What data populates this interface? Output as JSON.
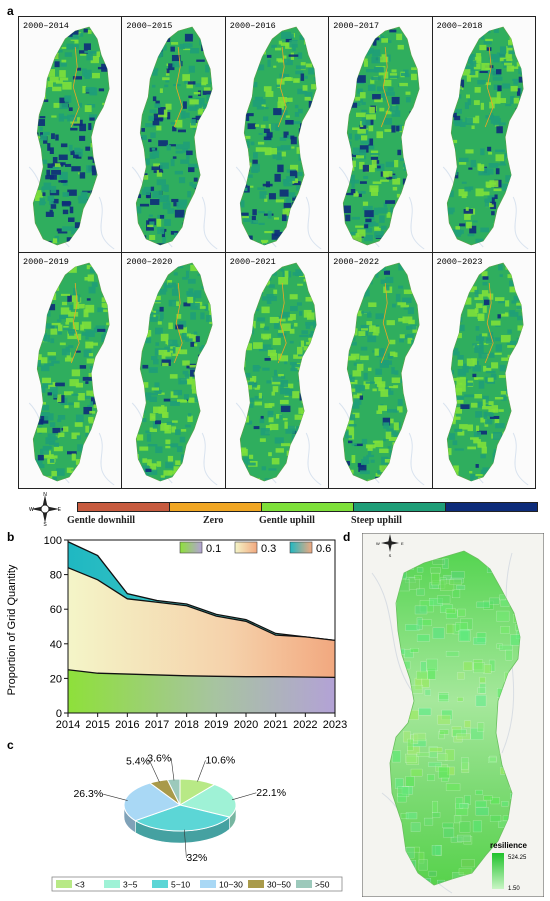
{
  "panel_labels": {
    "a": "a",
    "b": "b",
    "c": "c",
    "d": "d"
  },
  "panel_a": {
    "maps": [
      {
        "label": "2000–2014",
        "dark": 0.55
      },
      {
        "label": "2000–2015",
        "dark": 0.6
      },
      {
        "label": "2000–2016",
        "dark": 0.3
      },
      {
        "label": "2000–2017",
        "dark": 0.28
      },
      {
        "label": "2000–2018",
        "dark": 0.22
      },
      {
        "label": "2000–2019",
        "dark": 0.15
      },
      {
        "label": "2000–2020",
        "dark": 0.12
      },
      {
        "label": "2000–2021",
        "dark": 0.1
      },
      {
        "label": "2000–2022",
        "dark": 0.1
      },
      {
        "label": "2000–2023",
        "dark": 0.08
      }
    ],
    "legend": {
      "classes": [
        {
          "label": "Gentle downhill",
          "color": "#c75b3f"
        },
        {
          "label": "Zero",
          "color": "#f0a623"
        },
        {
          "label": "Gentle uphill",
          "color": "#7ee03a"
        },
        {
          "label": "Steep uphill",
          "color": "#1f9e78"
        },
        {
          "label": "",
          "color": "#0e2c7a"
        }
      ]
    }
  },
  "compass": {
    "n": "N",
    "s": "S",
    "e": "E",
    "w": "W"
  },
  "chart_data": [
    {
      "type": "area",
      "x": [
        2014,
        2015,
        2016,
        2017,
        2018,
        2019,
        2020,
        2021,
        2022,
        2023
      ],
      "ylabel": "Proportion of Grid Quantity",
      "ylim": [
        0,
        100
      ],
      "yticks": [
        0,
        20,
        40,
        60,
        80,
        100
      ],
      "legend_position": "top-right",
      "series": [
        {
          "name": "0.1",
          "values": [
            25,
            23,
            22.5,
            22,
            21.5,
            21.2,
            21,
            21,
            20.8,
            20.6
          ]
        },
        {
          "name": "0.3",
          "values": [
            84,
            77,
            66,
            64,
            62,
            56,
            53,
            45,
            44,
            42
          ]
        },
        {
          "name": "0.6",
          "values": [
            99,
            91,
            69,
            65,
            63,
            57,
            54,
            46,
            44,
            42
          ]
        }
      ]
    },
    {
      "type": "pie",
      "labels": [
        "<3",
        "3~5",
        "5~10",
        "10~30",
        "30~50",
        ">50"
      ],
      "values": [
        10.6,
        22.1,
        32,
        26.3,
        5.4,
        3.6
      ],
      "data_labels": [
        "10.6%",
        "22.1%",
        "32%",
        "26.3%",
        "5.4%",
        "3.6%"
      ],
      "colors": [
        "#b8e986",
        "#9ff2d6",
        "#5cd6d6",
        "#a9d8f5",
        "#a99a4a",
        "#9cc9bb"
      ],
      "legend_position": "bottom"
    }
  ],
  "panel_d": {
    "legend_title": "resilience",
    "max": "524.25",
    "min": "1.50"
  }
}
